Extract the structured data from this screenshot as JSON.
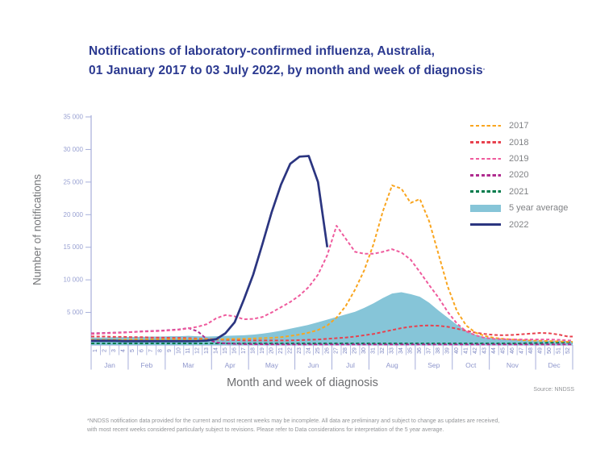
{
  "title": {
    "line1": "Notifications of laboratory-confirmed influenza, Australia,",
    "line2": "01 January 2017 to 03 July 2022, by month and week of diagnosis",
    "marker": "·"
  },
  "axes": {
    "y_label": "Number of notifications",
    "x_label": "Month and week of diagnosis",
    "y_ticks": [
      "35 000",
      "30 000",
      "25 000",
      "20 000",
      "15 000",
      "10 000",
      "5 000"
    ],
    "y_max": 35000,
    "weeks": 52
  },
  "source": "Source: NNDSS",
  "footnote": {
    "line1": "*NNDSS notification data provided for the current and most recent weeks may be incomplete. All data are preliminary and subject to change as updates are received,",
    "line2": "with most recent weeks considered particularly subject to revisions. Please refer to Data considerations for interpretation of the 5 year average."
  },
  "legend": [
    {
      "label": "2017",
      "color": "#F9A51F",
      "swatch": "dashed"
    },
    {
      "label": "2018",
      "color": "#E8414E",
      "swatch": "dashed"
    },
    {
      "label": "2019",
      "color": "#EF5B9D",
      "swatch": "dashed"
    },
    {
      "label": "2020",
      "color": "#B02C8F",
      "swatch": "dashed"
    },
    {
      "label": "2021",
      "color": "#007B4B",
      "swatch": "dashed"
    },
    {
      "label": "5 year average",
      "color": "#86C5D8",
      "swatch": "area"
    },
    {
      "label": "2022",
      "color": "#2B3580",
      "swatch": "solid"
    }
  ],
  "chart_data": {
    "type": "line",
    "title": "Notifications of laboratory-confirmed influenza, Australia, 01 January 2017 to 03 July 2022, by month and week of diagnosis",
    "xlabel": "Month and week of diagnosis",
    "ylabel": "Number of notifications",
    "ylim": [
      0,
      35000
    ],
    "x_unit": "week number 1-52",
    "grid": false,
    "legend_position": "top-right",
    "months": [
      {
        "label": "Jan",
        "weeks": 4
      },
      {
        "label": "Feb",
        "weeks": 4
      },
      {
        "label": "Mar",
        "weeks": 5
      },
      {
        "label": "Apr",
        "weeks": 4
      },
      {
        "label": "May",
        "weeks": 5
      },
      {
        "label": "Jun",
        "weeks": 4
      },
      {
        "label": "Jul",
        "weeks": 4
      },
      {
        "label": "Aug",
        "weeks": 5
      },
      {
        "label": "Sep",
        "weeks": 4
      },
      {
        "label": "Oct",
        "weeks": 4
      },
      {
        "label": "Nov",
        "weeks": 5
      },
      {
        "label": "Dec",
        "weeks": 4
      }
    ],
    "series": [
      {
        "name": "2017",
        "type": "line",
        "style": "dashed",
        "color": "#F9A51F",
        "values": [
          800,
          800,
          800,
          820,
          850,
          850,
          850,
          870,
          900,
          900,
          900,
          900,
          900,
          900,
          900,
          950,
          950,
          1000,
          1050,
          1100,
          1200,
          1400,
          1600,
          1900,
          2300,
          3000,
          4200,
          6000,
          8500,
          11500,
          15500,
          20500,
          24500,
          24000,
          21800,
          22400,
          19000,
          14000,
          9000,
          5200,
          3000,
          1900,
          1400,
          1100,
          950,
          850,
          750,
          700,
          650,
          600,
          550,
          500
        ]
      },
      {
        "name": "2018",
        "type": "line",
        "style": "dashed",
        "color": "#E8414E",
        "values": [
          1300,
          1300,
          1250,
          1250,
          1200,
          1200,
          1150,
          1150,
          1100,
          1100,
          1050,
          1000,
          950,
          850,
          800,
          750,
          700,
          700,
          700,
          700,
          700,
          700,
          750,
          800,
          850,
          950,
          1050,
          1150,
          1300,
          1500,
          1700,
          2000,
          2300,
          2600,
          2800,
          2950,
          3000,
          2950,
          2800,
          2500,
          2200,
          1900,
          1700,
          1550,
          1500,
          1550,
          1650,
          1750,
          1850,
          1800,
          1600,
          1300
        ]
      },
      {
        "name": "2019",
        "type": "line",
        "style": "dashed",
        "color": "#EF5B9D",
        "values": [
          1700,
          1800,
          1850,
          1900,
          2000,
          2050,
          2100,
          2150,
          2250,
          2350,
          2550,
          2800,
          3200,
          4100,
          4600,
          4400,
          3950,
          4000,
          4300,
          5000,
          5800,
          6600,
          7600,
          8900,
          10800,
          13800,
          18300,
          16300,
          14300,
          14000,
          14000,
          14300,
          14700,
          14200,
          13100,
          11200,
          9200,
          7300,
          5100,
          3300,
          2100,
          1500,
          1100,
          950,
          900,
          850,
          850,
          850,
          850,
          850,
          800,
          700
        ]
      },
      {
        "name": "2020",
        "type": "line",
        "style": "dashed",
        "color": "#B02C8F",
        "values": [
          1800,
          1850,
          1900,
          1950,
          2000,
          2100,
          2150,
          2200,
          2300,
          2400,
          2600,
          2100,
          900,
          400,
          250,
          180,
          150,
          130,
          120,
          110,
          100,
          100,
          100,
          100,
          100,
          100,
          100,
          100,
          100,
          100,
          100,
          100,
          100,
          100,
          100,
          100,
          100,
          100,
          100,
          100,
          100,
          100,
          100,
          100,
          100,
          100,
          100,
          100,
          100,
          100,
          100,
          100
        ]
      },
      {
        "name": "2021",
        "type": "line",
        "style": "dashed",
        "color": "#007B4B",
        "values": [
          250,
          250,
          250,
          250,
          250,
          250,
          250,
          250,
          250,
          250,
          250,
          250,
          250,
          250,
          250,
          250,
          250,
          250,
          250,
          250,
          250,
          250,
          250,
          250,
          250,
          250,
          250,
          250,
          250,
          250,
          250,
          250,
          250,
          250,
          250,
          250,
          250,
          250,
          250,
          250,
          250,
          250,
          250,
          250,
          250,
          250,
          250,
          300,
          300,
          350,
          350,
          400
        ]
      },
      {
        "name": "5 year average",
        "type": "area",
        "style": "solid",
        "color": "#86C5D8",
        "values": [
          1150,
          1150,
          1200,
          1200,
          1250,
          1250,
          1300,
          1300,
          1350,
          1350,
          1400,
          1350,
          1300,
          1350,
          1400,
          1450,
          1500,
          1600,
          1750,
          1950,
          2200,
          2500,
          2800,
          3100,
          3500,
          3900,
          4300,
          4700,
          5100,
          5700,
          6400,
          7200,
          7900,
          8100,
          7800,
          7400,
          6500,
          5300,
          4200,
          3100,
          2200,
          1600,
          1200,
          1000,
          850,
          800,
          750,
          700,
          700,
          650,
          650,
          600
        ]
      },
      {
        "name": "2022",
        "type": "line",
        "style": "solid",
        "color": "#2B3580",
        "values": [
          650,
          650,
          650,
          600,
          600,
          600,
          600,
          600,
          600,
          600,
          600,
          620,
          680,
          900,
          1800,
          3500,
          7000,
          10800,
          15500,
          20400,
          24600,
          27800,
          28900,
          29000,
          25000,
          15000
        ]
      }
    ]
  }
}
